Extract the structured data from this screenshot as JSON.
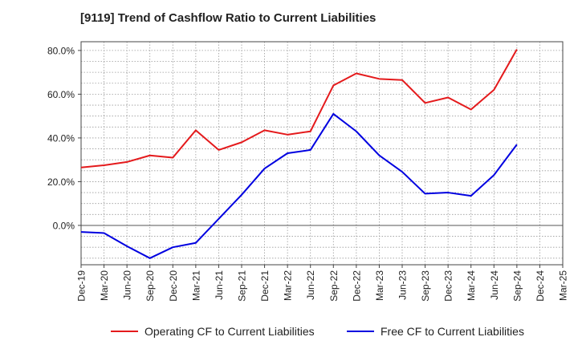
{
  "title": "[9119]  Trend of Cashflow Ratio to Current Liabilities",
  "chart_data": {
    "type": "line",
    "x": [
      "Dec-19",
      "Mar-20",
      "Jun-20",
      "Sep-20",
      "Dec-20",
      "Mar-21",
      "Jun-21",
      "Sep-21",
      "Dec-21",
      "Mar-22",
      "Jun-22",
      "Sep-22",
      "Dec-22",
      "Mar-23",
      "Jun-23",
      "Sep-23",
      "Dec-23",
      "Mar-24",
      "Jun-24",
      "Sep-24",
      "Dec-24",
      "Mar-25"
    ],
    "xticks": [
      "Dec-19",
      "Mar-20",
      "Jun-20",
      "Sep-20",
      "Dec-20",
      "Mar-21",
      "Jun-21",
      "Sep-21",
      "Dec-21",
      "Mar-22",
      "Jun-22",
      "Sep-22",
      "Dec-22",
      "Mar-23",
      "Jun-23",
      "Sep-23",
      "Dec-23",
      "Mar-24",
      "Jun-24",
      "Sep-24",
      "Dec-24",
      "Mar-25"
    ],
    "yticks": [
      0,
      20,
      40,
      60,
      80
    ],
    "yticklabels": [
      "0.0%",
      "20.0%",
      "40.0%",
      "60.0%",
      "80.0%"
    ],
    "ylim": [
      -18,
      84
    ],
    "grid": true,
    "legend_position": "bottom",
    "series": [
      {
        "name": "Operating CF to Current Liabilities",
        "color": "#e41a1c",
        "values": [
          26.5,
          27.5,
          29.0,
          32.0,
          31.0,
          43.5,
          34.5,
          38.0,
          43.5,
          41.5,
          43.0,
          64.0,
          69.5,
          67.0,
          66.5,
          56.0,
          58.5,
          53.0,
          62.0,
          80.5,
          null,
          null
        ]
      },
      {
        "name": "Free CF to Current Liabilities",
        "color": "#0000e0",
        "values": [
          -3.0,
          -3.5,
          -9.5,
          -15.0,
          -10.0,
          -8.0,
          3.0,
          14.0,
          26.0,
          33.0,
          34.5,
          51.0,
          43.0,
          32.0,
          24.5,
          14.5,
          15.0,
          13.5,
          23.0,
          37.0,
          null,
          null
        ]
      }
    ]
  }
}
